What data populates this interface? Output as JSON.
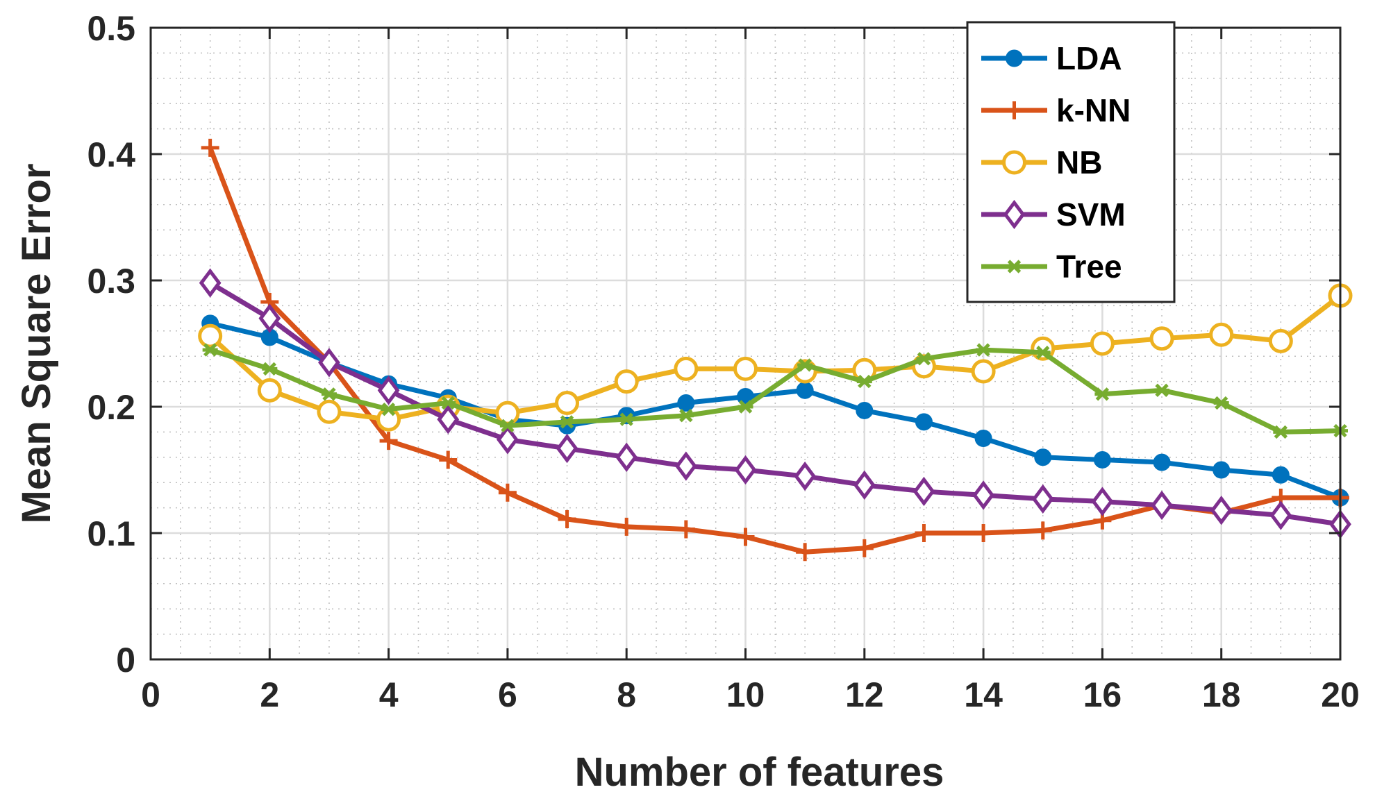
{
  "chart_data": {
    "type": "line",
    "title": "",
    "xlabel": "Number of features",
    "ylabel": "Mean Square Error",
    "xlim": [
      0,
      20
    ],
    "ylim": [
      0,
      0.5
    ],
    "xticks": [
      0,
      2,
      4,
      6,
      8,
      10,
      12,
      14,
      16,
      18,
      20
    ],
    "yticks": [
      0,
      0.1,
      0.2,
      0.3,
      0.4,
      0.5
    ],
    "xtick_labels": [
      "0",
      "2",
      "4",
      "6",
      "8",
      "10",
      "12",
      "14",
      "16",
      "18",
      "20"
    ],
    "ytick_labels": [
      "0",
      "0.1",
      "0.2",
      "0.3",
      "0.4",
      "0.5"
    ],
    "grid": true,
    "minor_grid": true,
    "legend_position": "top-right",
    "x": [
      1,
      2,
      3,
      4,
      5,
      6,
      7,
      8,
      9,
      10,
      11,
      12,
      13,
      14,
      15,
      16,
      17,
      18,
      19,
      20
    ],
    "series": [
      {
        "name": "LDA",
        "color": "#0072BD",
        "marker": "circle-filled",
        "values": [
          0.266,
          0.255,
          0.235,
          0.218,
          0.207,
          0.19,
          0.185,
          0.193,
          0.203,
          0.208,
          0.213,
          0.197,
          0.188,
          0.175,
          0.16,
          0.158,
          0.156,
          0.15,
          0.146,
          0.128
        ]
      },
      {
        "name": "k-NN",
        "color": "#D95319",
        "marker": "plus",
        "values": [
          0.405,
          0.283,
          0.235,
          0.173,
          0.158,
          0.132,
          0.111,
          0.105,
          0.103,
          0.097,
          0.085,
          0.088,
          0.1,
          0.1,
          0.102,
          0.11,
          0.122,
          0.116,
          0.128,
          0.128
        ]
      },
      {
        "name": "NB",
        "color": "#EDB120",
        "marker": "circle-open",
        "values": [
          0.256,
          0.213,
          0.196,
          0.19,
          0.2,
          0.195,
          0.203,
          0.22,
          0.23,
          0.23,
          0.228,
          0.229,
          0.232,
          0.228,
          0.246,
          0.25,
          0.254,
          0.257,
          0.252,
          0.288
        ]
      },
      {
        "name": "SVM",
        "color": "#7E2F8E",
        "marker": "diamond",
        "values": [
          0.298,
          0.27,
          0.235,
          0.213,
          0.19,
          0.174,
          0.167,
          0.16,
          0.153,
          0.15,
          0.145,
          0.138,
          0.133,
          0.13,
          0.127,
          0.125,
          0.122,
          0.118,
          0.114,
          0.107
        ]
      },
      {
        "name": "Tree",
        "color": "#77AC30",
        "marker": "asterisk",
        "values": [
          0.245,
          0.23,
          0.21,
          0.198,
          0.203,
          0.185,
          0.188,
          0.19,
          0.193,
          0.2,
          0.233,
          0.22,
          0.238,
          0.245,
          0.243,
          0.21,
          0.213,
          0.203,
          0.18,
          0.181
        ]
      }
    ]
  }
}
